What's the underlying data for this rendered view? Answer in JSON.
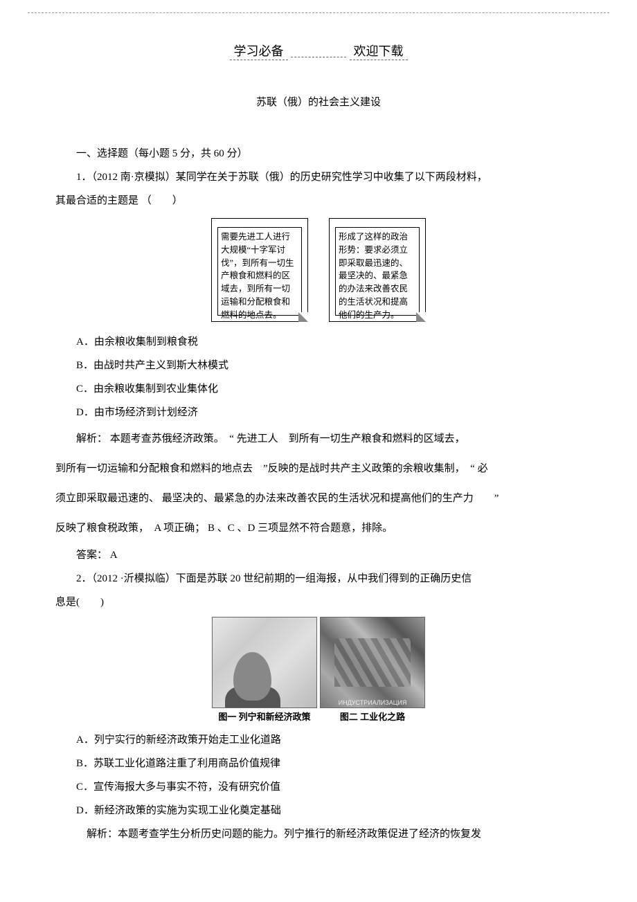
{
  "header": {
    "left": "学习必备",
    "right": "欢迎下载"
  },
  "title": "苏联（俄）的社会主义建设",
  "section_heading": "一、选择题（每小题 5 分，共 60 分）",
  "q1": {
    "stem_a": "1．（2012 南·京模拟）某同学在关于苏联（俄）的历史研究性学习中收集了以下两段材料，",
    "stem_b": "其最合适的主题是 （　　）",
    "box1": "需要先进工人进行大规模“十字军讨伐”，到所有一切生产粮食和燃料的区域去，到所有一切运输和分配粮食和燃料的地点去。",
    "box2": "形成了这样的政治形势：要求必须立即采取最迅速的、最坚决的、最紧急的办法来改善农民的生活状况和提高他们的生产力。",
    "options": {
      "A": "A．由余粮收集制到粮食税",
      "B": "B．由战时共产主义到斯大林模式",
      "C": "C．由余粮收集制到农业集体化",
      "D": "D．由市场经济到计划经济"
    },
    "explain1": "解析： 本题考查苏俄经济政策。　“ 先进工人　到所有一切生产粮食和燃料的区域去，",
    "explain2": "到所有一切运输和分配粮食和燃料的地点去　”反映的是战时共产主义政策的余粮收集制，　“ 必",
    "explain3": "须立即采取最迅速的、 最坚决的、最紧急的办法来改善农民的生活状况和提高他们的生产力　　”",
    "explain4": "反映了粮食税政策，　A 项正确； B 、C 、D 三项显然不符合题意，排除。",
    "answer": "答案： A"
  },
  "q2": {
    "stem_a": "2．（2012 ·沂模拟临）下面是苏联 20 世纪前期的一组海报，从中我们得到的正确历史信",
    "stem_b": "息是(　　)",
    "caption1": "图一 列宁和新经济政策",
    "caption2": "图二 工业化之路",
    "options": {
      "A": "A．列宁实行的新经济政策开始走工业化道路",
      "B": "B．苏联工业化道路注重了利用商品价值规律",
      "C": "C．宣传海报大多与事实不符，没有研究价值",
      "D": "D．新经济政策的实施为实现工业化奠定基础"
    },
    "explain": "解析：本题考查学生分析历史问题的能力。列宁推行的新经济政策促进了经济的恢复发"
  }
}
